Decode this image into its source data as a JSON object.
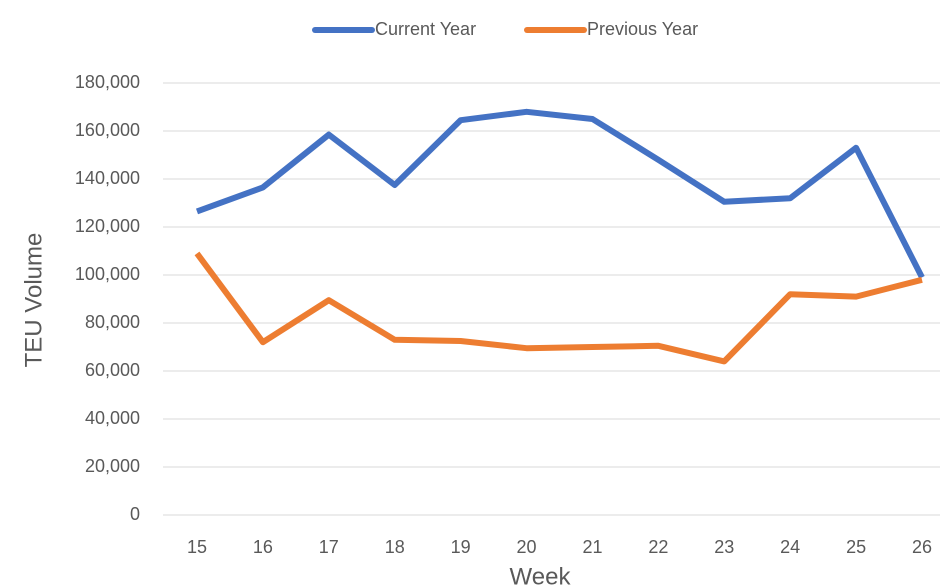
{
  "chart_data": {
    "type": "line",
    "x_label": "Week",
    "y_label": "TEU Volume",
    "categories": [
      "15",
      "16",
      "17",
      "18",
      "19",
      "20",
      "21",
      "22",
      "23",
      "24",
      "25",
      "26"
    ],
    "series": [
      {
        "name": "Current Year",
        "color": "#4472c4",
        "values": [
          126500,
          136500,
          158500,
          137500,
          164500,
          168000,
          165000,
          148000,
          130500,
          132000,
          153000,
          99000
        ]
      },
      {
        "name": "Previous Year",
        "color": "#ed7d31",
        "values": [
          109000,
          72000,
          89500,
          73000,
          72500,
          69500,
          70000,
          70500,
          64000,
          92000,
          91000,
          98000
        ]
      }
    ],
    "ylim": [
      0,
      180000
    ],
    "yticks": [
      0,
      {
        "value": 20000,
        "label": "20,000"
      },
      {
        "value": 40000,
        "label": "40,000"
      },
      {
        "value": 60000,
        "label": "60,000"
      },
      {
        "value": 80000,
        "label": "80,000"
      },
      {
        "value": 100000,
        "label": "100,000"
      },
      {
        "value": 120000,
        "label": "120,000"
      },
      {
        "value": 140000,
        "label": "140,000"
      },
      {
        "value": 160000,
        "label": "160,000"
      },
      {
        "value": 180000,
        "label": "180,000"
      }
    ],
    "grid": true,
    "legend": "top"
  }
}
